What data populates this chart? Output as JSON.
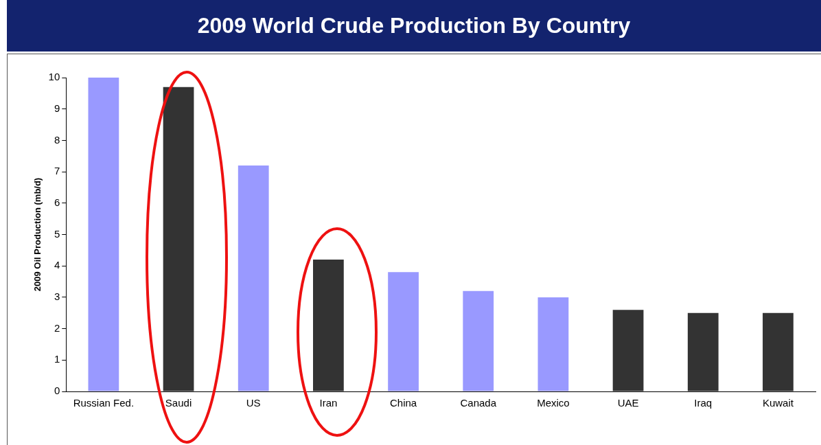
{
  "chart_data": {
    "type": "bar",
    "title": "2009 World Crude Production By Country",
    "ylabel": "2009 Oil Production (mb/d)",
    "categories": [
      "Russian Fed.",
      "Saudi",
      "US",
      "Iran",
      "China",
      "Canada",
      "Mexico",
      "UAE",
      "Iraq",
      "Kuwait"
    ],
    "values": [
      10.0,
      9.7,
      7.2,
      4.2,
      3.8,
      3.2,
      3.0,
      2.6,
      2.5,
      2.5
    ],
    "colors": [
      "#9999ff",
      "#333333",
      "#9999ff",
      "#333333",
      "#9999ff",
      "#9999ff",
      "#9999ff",
      "#333333",
      "#333333",
      "#333333"
    ],
    "ylim": [
      0,
      10
    ],
    "yticks": [
      0,
      1,
      2,
      3,
      4,
      5,
      6,
      7,
      8,
      9,
      10
    ],
    "grid": false,
    "legend": false
  }
}
